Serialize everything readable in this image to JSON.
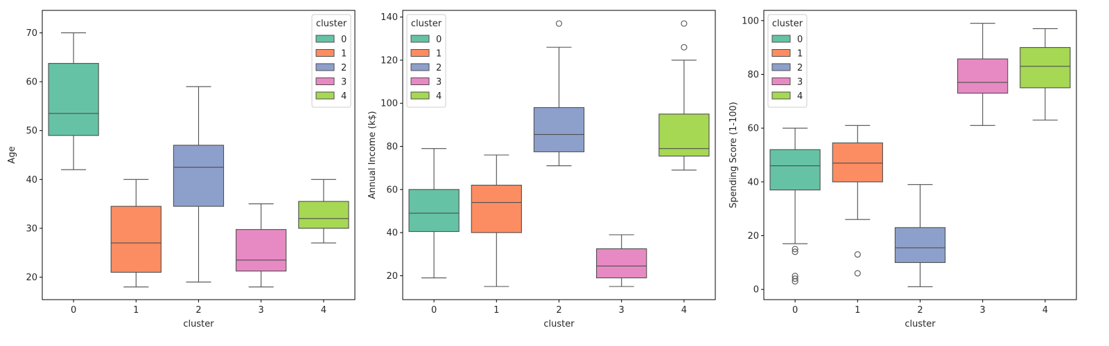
{
  "chart_data": [
    {
      "type": "box",
      "xlabel": "cluster",
      "ylabel": "Age",
      "categories": [
        "0",
        "1",
        "2",
        "3",
        "4"
      ],
      "ylim": [
        15.4,
        74.6
      ],
      "yticks": [
        20,
        30,
        40,
        50,
        60,
        70
      ],
      "legend": {
        "title": "cluster",
        "placement": "top-right",
        "entries": [
          "0",
          "1",
          "2",
          "3",
          "4"
        ]
      },
      "grid": false,
      "boxes": [
        {
          "cluster": "0",
          "whisker_low": 42,
          "q1": 49,
          "median": 53.5,
          "q3": 63.75,
          "whisker_high": 70,
          "outliers": []
        },
        {
          "cluster": "1",
          "whisker_low": 18,
          "q1": 21,
          "median": 27,
          "q3": 34.5,
          "whisker_high": 40,
          "outliers": []
        },
        {
          "cluster": "2",
          "whisker_low": 19,
          "q1": 34.5,
          "median": 42.5,
          "q3": 47,
          "whisker_high": 59,
          "outliers": []
        },
        {
          "cluster": "3",
          "whisker_low": 18,
          "q1": 21.25,
          "median": 23.5,
          "q3": 29.75,
          "whisker_high": 35,
          "outliers": []
        },
        {
          "cluster": "4",
          "whisker_low": 27,
          "q1": 30,
          "median": 32,
          "q3": 35.5,
          "whisker_high": 40,
          "outliers": []
        }
      ]
    },
    {
      "type": "box",
      "xlabel": "cluster",
      "ylabel": "Annual Income (k$)",
      "categories": [
        "0",
        "1",
        "2",
        "3",
        "4"
      ],
      "ylim": [
        8.9,
        143.1
      ],
      "yticks": [
        20,
        40,
        60,
        80,
        100,
        120,
        140
      ],
      "legend": {
        "title": "cluster",
        "placement": "top-left",
        "entries": [
          "0",
          "1",
          "2",
          "3",
          "4"
        ]
      },
      "grid": false,
      "boxes": [
        {
          "cluster": "0",
          "whisker_low": 19,
          "q1": 40.5,
          "median": 49,
          "q3": 60,
          "whisker_high": 79,
          "outliers": []
        },
        {
          "cluster": "1",
          "whisker_low": 15,
          "q1": 40,
          "median": 54,
          "q3": 62,
          "whisker_high": 76,
          "outliers": []
        },
        {
          "cluster": "2",
          "whisker_low": 71,
          "q1": 77.5,
          "median": 85.5,
          "q3": 98,
          "whisker_high": 126,
          "outliers": [
            137
          ]
        },
        {
          "cluster": "3",
          "whisker_low": 15,
          "q1": 19,
          "median": 24.5,
          "q3": 32.5,
          "whisker_high": 39,
          "outliers": []
        },
        {
          "cluster": "4",
          "whisker_low": 69,
          "q1": 75.5,
          "median": 79,
          "q3": 95,
          "whisker_high": 120,
          "outliers": [
            126,
            137
          ]
        }
      ]
    },
    {
      "type": "box",
      "xlabel": "cluster",
      "ylabel": "Spending Score (1-100)",
      "categories": [
        "0",
        "1",
        "2",
        "3",
        "4"
      ],
      "ylim": [
        -3.8,
        103.8
      ],
      "yticks": [
        0,
        20,
        40,
        60,
        80,
        100
      ],
      "legend": {
        "title": "cluster",
        "placement": "top-left",
        "entries": [
          "0",
          "1",
          "2",
          "3",
          "4"
        ]
      },
      "grid": false,
      "boxes": [
        {
          "cluster": "0",
          "whisker_low": 17,
          "q1": 37,
          "median": 46,
          "q3": 52,
          "whisker_high": 60,
          "outliers": [
            15,
            14,
            5,
            4,
            3
          ]
        },
        {
          "cluster": "1",
          "whisker_low": 26,
          "q1": 40,
          "median": 47,
          "q3": 54.5,
          "whisker_high": 61,
          "outliers": [
            13,
            6
          ]
        },
        {
          "cluster": "2",
          "whisker_low": 1,
          "q1": 10,
          "median": 15.5,
          "q3": 23,
          "whisker_high": 39,
          "outliers": []
        },
        {
          "cluster": "3",
          "whisker_low": 61,
          "q1": 73,
          "median": 77,
          "q3": 85.75,
          "whisker_high": 99,
          "outliers": []
        },
        {
          "cluster": "4",
          "whisker_low": 63,
          "q1": 75,
          "median": 83,
          "q3": 90,
          "whisker_high": 97,
          "outliers": []
        }
      ]
    }
  ],
  "palette": [
    "#66c2a5",
    "#fc8d62",
    "#8da0cb",
    "#e78ac3",
    "#a6d854"
  ],
  "box_edge_color": "#4d4d4d"
}
